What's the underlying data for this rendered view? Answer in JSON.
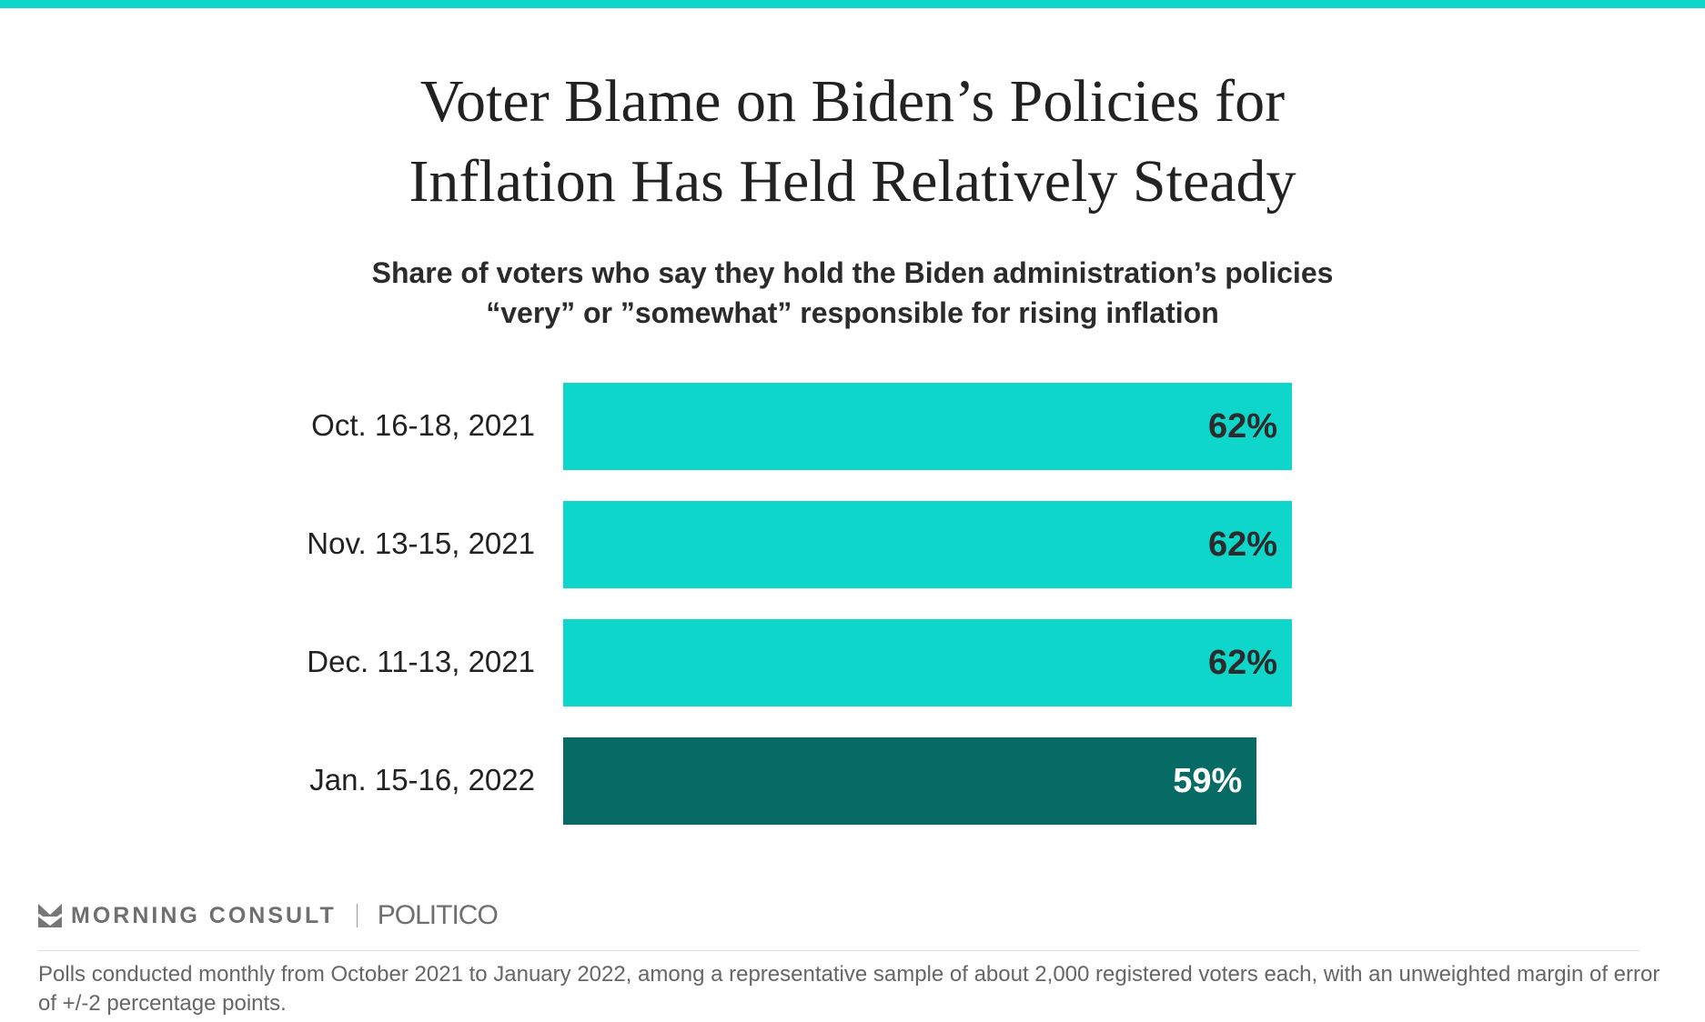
{
  "title_lines": [
    "Voter Blame on Biden’s Policies for",
    "Inflation Has Held Relatively Steady"
  ],
  "subtitle_lines": [
    "Share of voters who say they hold the Biden administration’s policies",
    "“very” or ”somewhat” responsible for rising inflation"
  ],
  "chart_data": {
    "type": "bar",
    "orientation": "horizontal",
    "title": "Voter Blame on Biden’s Policies for Inflation Has Held Relatively Steady",
    "categories": [
      "Oct. 16-18, 2021",
      "Nov. 13-15, 2021",
      "Dec. 11-13, 2021",
      "Jan. 15-16, 2022"
    ],
    "values": [
      62,
      62,
      62,
      59
    ],
    "data_labels": [
      "62%",
      "62%",
      "62%",
      "59%"
    ],
    "xlim": [
      0,
      100
    ],
    "grid": false,
    "colors": [
      "#0ed6cb",
      "#0ed6cb",
      "#0ed6cb",
      "#056b64"
    ],
    "label_colors": [
      "#2b2b2b",
      "#2b2b2b",
      "#2b2b2b",
      "#ffffff"
    ]
  },
  "footer": {
    "brand1": "MORNING CONSULT",
    "brand2": "POLITICO",
    "note": "Polls conducted monthly from October 2021 to January 2022, among a representative sample of about 2,000 registered voters each, with an unweighted margin of error of +/-2 percentage points."
  },
  "accent": "#0ed6cb"
}
